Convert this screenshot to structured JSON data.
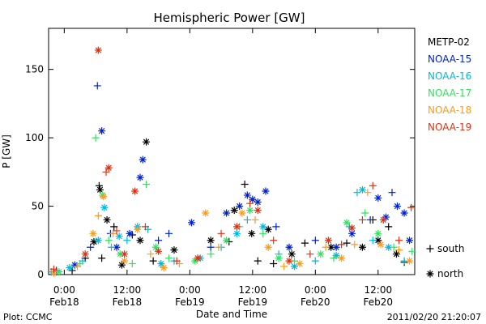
{
  "chart_data": {
    "type": "scatter",
    "title": "Hemispheric Power [GW]",
    "ylabel": "P [GW]",
    "xlabel": "Date and Time",
    "ylim": [
      0,
      180
    ],
    "xlim": [
      "2011-02-17 21:00",
      "2011-02-20 19:00"
    ],
    "y_ticks": [
      0,
      50,
      100,
      150
    ],
    "x_ticks": [
      {
        "x": "2011-02-18 00:00",
        "line1": "0:00",
        "line2": "Feb18"
      },
      {
        "x": "2011-02-18 12:00",
        "line1": "12:00",
        "line2": "Feb18"
      },
      {
        "x": "2011-02-19 00:00",
        "line1": "0:00",
        "line2": "Feb19"
      },
      {
        "x": "2011-02-19 12:00",
        "line1": "12:00",
        "line2": "Feb19"
      },
      {
        "x": "2011-02-20 00:00",
        "line1": "0:00",
        "line2": "Feb20"
      },
      {
        "x": "2011-02-20 12:00",
        "line1": "12:00",
        "line2": "Feb20"
      }
    ],
    "grid": false,
    "legend_position": "right",
    "marker_legend": [
      {
        "symbol": "+",
        "label": "south"
      },
      {
        "symbol": "*",
        "label": "north"
      }
    ],
    "series": [
      {
        "name": "METP-02",
        "color": "#000000",
        "points": [
          {
            "x": "2011-02-18 01:30",
            "y": 3,
            "h": "S"
          },
          {
            "x": "2011-02-18 04:00",
            "y": 12,
            "h": "S"
          },
          {
            "x": "2011-02-18 05:40",
            "y": 24,
            "h": "N"
          },
          {
            "x": "2011-02-18 06:40",
            "y": 65,
            "h": "S"
          },
          {
            "x": "2011-02-18 06:50",
            "y": 62,
            "h": "N"
          },
          {
            "x": "2011-02-18 07:10",
            "y": 12,
            "h": "S"
          },
          {
            "x": "2011-02-18 08:10",
            "y": 40,
            "h": "N"
          },
          {
            "x": "2011-02-18 09:30",
            "y": 35,
            "h": "S"
          },
          {
            "x": "2011-02-18 11:00",
            "y": 7,
            "h": "N"
          },
          {
            "x": "2011-02-18 13:00",
            "y": 29,
            "h": "S"
          },
          {
            "x": "2011-02-18 14:30",
            "y": 25,
            "h": "N"
          },
          {
            "x": "2011-02-18 15:40",
            "y": 97,
            "h": "N"
          },
          {
            "x": "2011-02-18 17:00",
            "y": 10,
            "h": "S"
          },
          {
            "x": "2011-02-18 21:00",
            "y": 18,
            "h": "N"
          },
          {
            "x": "2011-02-19 04:00",
            "y": 25,
            "h": "N"
          },
          {
            "x": "2011-02-19 07:30",
            "y": 24,
            "h": "S"
          },
          {
            "x": "2011-02-19 08:30",
            "y": 47,
            "h": "N"
          },
          {
            "x": "2011-02-19 10:30",
            "y": 66,
            "h": "S"
          },
          {
            "x": "2011-02-19 11:50",
            "y": 30,
            "h": "N"
          },
          {
            "x": "2011-02-19 13:00",
            "y": 10,
            "h": "S"
          },
          {
            "x": "2011-02-19 15:00",
            "y": 33,
            "h": "N"
          },
          {
            "x": "2011-02-19 16:00",
            "y": 8,
            "h": "S"
          },
          {
            "x": "2011-02-19 19:30",
            "y": 15,
            "h": "N"
          },
          {
            "x": "2011-02-19 22:00",
            "y": 23,
            "h": "S"
          },
          {
            "x": "2011-02-20 03:00",
            "y": 20,
            "h": "N"
          },
          {
            "x": "2011-02-20 06:00",
            "y": 23,
            "h": "S"
          },
          {
            "x": "2011-02-20 09:00",
            "y": 20,
            "h": "N"
          },
          {
            "x": "2011-02-20 11:00",
            "y": 40,
            "h": "S"
          },
          {
            "x": "2011-02-20 12:00",
            "y": 25,
            "h": "N"
          },
          {
            "x": "2011-02-20 14:00",
            "y": 35,
            "h": "S"
          },
          {
            "x": "2011-02-20 15:30",
            "y": 15,
            "h": "N"
          },
          {
            "x": "2011-02-20 17:00",
            "y": 9,
            "h": "S"
          }
        ]
      },
      {
        "name": "NOAA-15",
        "color": "#0022cc",
        "points": [
          {
            "x": "2011-02-17 22:30",
            "y": 3,
            "h": "S"
          },
          {
            "x": "2011-02-18 02:00",
            "y": 7,
            "h": "N"
          },
          {
            "x": "2011-02-18 05:00",
            "y": 20,
            "h": "S"
          },
          {
            "x": "2011-02-18 06:20",
            "y": 138,
            "h": "S"
          },
          {
            "x": "2011-02-18 07:10",
            "y": 105,
            "h": "N"
          },
          {
            "x": "2011-02-18 08:50",
            "y": 30,
            "h": "S"
          },
          {
            "x": "2011-02-18 10:00",
            "y": 20,
            "h": "N"
          },
          {
            "x": "2011-02-18 12:30",
            "y": 30,
            "h": "N"
          },
          {
            "x": "2011-02-18 14:30",
            "y": 71,
            "h": "N"
          },
          {
            "x": "2011-02-18 15:00",
            "y": 84,
            "h": "N"
          },
          {
            "x": "2011-02-18 18:00",
            "y": 25,
            "h": "S"
          },
          {
            "x": "2011-02-18 20:00",
            "y": 30,
            "h": "S"
          },
          {
            "x": "2011-02-19 00:20",
            "y": 38,
            "h": "N"
          },
          {
            "x": "2011-02-19 04:00",
            "y": 20,
            "h": "S"
          },
          {
            "x": "2011-02-19 07:00",
            "y": 45,
            "h": "N"
          },
          {
            "x": "2011-02-19 09:30",
            "y": 50,
            "h": "N"
          },
          {
            "x": "2011-02-19 11:00",
            "y": 58,
            "h": "N"
          },
          {
            "x": "2011-02-19 12:00",
            "y": 55,
            "h": "N"
          },
          {
            "x": "2011-02-19 13:00",
            "y": 53,
            "h": "N"
          },
          {
            "x": "2011-02-19 14:30",
            "y": 61,
            "h": "N"
          },
          {
            "x": "2011-02-19 16:30",
            "y": 35,
            "h": "S"
          },
          {
            "x": "2011-02-19 19:00",
            "y": 20,
            "h": "N"
          },
          {
            "x": "2011-02-20 00:00",
            "y": 25,
            "h": "S"
          },
          {
            "x": "2011-02-20 04:00",
            "y": 20,
            "h": "N"
          },
          {
            "x": "2011-02-20 07:00",
            "y": 30,
            "h": "N"
          },
          {
            "x": "2011-02-20 10:30",
            "y": 40,
            "h": "S"
          },
          {
            "x": "2011-02-20 12:00",
            "y": 56,
            "h": "N"
          },
          {
            "x": "2011-02-20 13:30",
            "y": 42,
            "h": "N"
          },
          {
            "x": "2011-02-20 14:40",
            "y": 60,
            "h": "S"
          },
          {
            "x": "2011-02-20 15:40",
            "y": 50,
            "h": "N"
          },
          {
            "x": "2011-02-20 17:00",
            "y": 45,
            "h": "N"
          },
          {
            "x": "2011-02-20 18:00",
            "y": 25,
            "h": "N"
          }
        ]
      },
      {
        "name": "NOAA-16",
        "color": "#00b8e0",
        "points": [
          {
            "x": "2011-02-17 21:30",
            "y": 2,
            "h": "S"
          },
          {
            "x": "2011-02-18 01:00",
            "y": 5,
            "h": "N"
          },
          {
            "x": "2011-02-18 03:30",
            "y": 10,
            "h": "S"
          },
          {
            "x": "2011-02-18 06:30",
            "y": 25,
            "h": "N"
          },
          {
            "x": "2011-02-18 07:40",
            "y": 49,
            "h": "N"
          },
          {
            "x": "2011-02-18 09:00",
            "y": 20,
            "h": "S"
          },
          {
            "x": "2011-02-18 10:30",
            "y": 28,
            "h": "N"
          },
          {
            "x": "2011-02-18 12:00",
            "y": 25,
            "h": "S"
          },
          {
            "x": "2011-02-18 14:00",
            "y": 35,
            "h": "N"
          },
          {
            "x": "2011-02-18 16:00",
            "y": 33,
            "h": "S"
          },
          {
            "x": "2011-02-18 18:30",
            "y": 8,
            "h": "N"
          },
          {
            "x": "2011-02-18 21:00",
            "y": 10,
            "h": "S"
          },
          {
            "x": "2011-02-19 02:00",
            "y": 12,
            "h": "N"
          },
          {
            "x": "2011-02-19 06:00",
            "y": 20,
            "h": "S"
          },
          {
            "x": "2011-02-19 09:00",
            "y": 30,
            "h": "N"
          },
          {
            "x": "2011-02-19 11:00",
            "y": 40,
            "h": "S"
          },
          {
            "x": "2011-02-19 14:00",
            "y": 35,
            "h": "N"
          },
          {
            "x": "2011-02-19 17:00",
            "y": 15,
            "h": "S"
          },
          {
            "x": "2011-02-19 20:00",
            "y": 6,
            "h": "N"
          },
          {
            "x": "2011-02-20 00:00",
            "y": 10,
            "h": "S"
          },
          {
            "x": "2011-02-20 04:00",
            "y": 14,
            "h": "N"
          },
          {
            "x": "2011-02-20 06:30",
            "y": 35,
            "h": "S"
          },
          {
            "x": "2011-02-20 08:00",
            "y": 60,
            "h": "S"
          },
          {
            "x": "2011-02-20 09:00",
            "y": 62,
            "h": "N"
          },
          {
            "x": "2011-02-20 11:00",
            "y": 25,
            "h": "S"
          },
          {
            "x": "2011-02-20 14:00",
            "y": 20,
            "h": "N"
          },
          {
            "x": "2011-02-20 17:00",
            "y": 10,
            "h": "S"
          }
        ]
      },
      {
        "name": "NOAA-17",
        "color": "#33e060",
        "points": [
          {
            "x": "2011-02-17 23:00",
            "y": 2,
            "h": "N"
          },
          {
            "x": "2011-02-18 03:00",
            "y": 8,
            "h": "S"
          },
          {
            "x": "2011-02-18 06:00",
            "y": 100,
            "h": "S"
          },
          {
            "x": "2011-02-18 07:20",
            "y": 58,
            "h": "N"
          },
          {
            "x": "2011-02-18 08:30",
            "y": 25,
            "h": "S"
          },
          {
            "x": "2011-02-18 10:40",
            "y": 15,
            "h": "N"
          },
          {
            "x": "2011-02-18 13:00",
            "y": 8,
            "h": "S"
          },
          {
            "x": "2011-02-18 15:40",
            "y": 66,
            "h": "S"
          },
          {
            "x": "2011-02-18 17:30",
            "y": 20,
            "h": "N"
          },
          {
            "x": "2011-02-18 20:00",
            "y": 12,
            "h": "S"
          },
          {
            "x": "2011-02-19 01:00",
            "y": 10,
            "h": "N"
          },
          {
            "x": "2011-02-19 04:00",
            "y": 15,
            "h": "S"
          },
          {
            "x": "2011-02-19 07:00",
            "y": 25,
            "h": "N"
          },
          {
            "x": "2011-02-19 09:30",
            "y": 35,
            "h": "S"
          },
          {
            "x": "2011-02-19 11:30",
            "y": 47,
            "h": "N"
          },
          {
            "x": "2011-02-19 14:00",
            "y": 30,
            "h": "S"
          },
          {
            "x": "2011-02-19 17:00",
            "y": 12,
            "h": "N"
          },
          {
            "x": "2011-02-19 20:00",
            "y": 10,
            "h": "S"
          },
          {
            "x": "2011-02-20 01:00",
            "y": 15,
            "h": "N"
          },
          {
            "x": "2011-02-20 03:30",
            "y": 12,
            "h": "S"
          },
          {
            "x": "2011-02-20 06:00",
            "y": 38,
            "h": "N"
          },
          {
            "x": "2011-02-20 09:30",
            "y": 45,
            "h": "S"
          },
          {
            "x": "2011-02-20 12:00",
            "y": 30,
            "h": "N"
          },
          {
            "x": "2011-02-20 15:00",
            "y": 20,
            "h": "S"
          },
          {
            "x": "2011-02-20 18:30",
            "y": 17,
            "h": "S"
          }
        ]
      },
      {
        "name": "NOAA-18",
        "color": "#ff9a1a",
        "points": [
          {
            "x": "2011-02-17 22:00",
            "y": 1,
            "h": "N"
          },
          {
            "x": "2011-02-18 02:30",
            "y": 6,
            "h": "S"
          },
          {
            "x": "2011-02-18 05:30",
            "y": 30,
            "h": "N"
          },
          {
            "x": "2011-02-18 06:30",
            "y": 43,
            "h": "S"
          },
          {
            "x": "2011-02-18 07:30",
            "y": 57,
            "h": "N"
          },
          {
            "x": "2011-02-18 09:20",
            "y": 30,
            "h": "S"
          },
          {
            "x": "2011-02-18 11:30",
            "y": 10,
            "h": "N"
          },
          {
            "x": "2011-02-18 14:00",
            "y": 33,
            "h": "N"
          },
          {
            "x": "2011-02-18 16:30",
            "y": 15,
            "h": "S"
          },
          {
            "x": "2011-02-18 19:00",
            "y": 5,
            "h": "N"
          },
          {
            "x": "2011-02-18 22:00",
            "y": 8,
            "h": "S"
          },
          {
            "x": "2011-02-19 03:00",
            "y": 45,
            "h": "N"
          },
          {
            "x": "2011-02-19 05:30",
            "y": 20,
            "h": "S"
          },
          {
            "x": "2011-02-19 10:00",
            "y": 45,
            "h": "N"
          },
          {
            "x": "2011-02-19 12:30",
            "y": 40,
            "h": "S"
          },
          {
            "x": "2011-02-19 15:00",
            "y": 20,
            "h": "N"
          },
          {
            "x": "2011-02-19 18:00",
            "y": 6,
            "h": "S"
          },
          {
            "x": "2011-02-19 21:00",
            "y": 8,
            "h": "N"
          },
          {
            "x": "2011-02-20 02:00",
            "y": 20,
            "h": "S"
          },
          {
            "x": "2011-02-20 05:00",
            "y": 12,
            "h": "N"
          },
          {
            "x": "2011-02-20 07:30",
            "y": 22,
            "h": "S"
          },
          {
            "x": "2011-02-20 10:00",
            "y": 60,
            "h": "S"
          },
          {
            "x": "2011-02-20 12:30",
            "y": 22,
            "h": "N"
          },
          {
            "x": "2011-02-20 16:00",
            "y": 18,
            "h": "S"
          },
          {
            "x": "2011-02-20 18:00",
            "y": 10,
            "h": "N"
          }
        ]
      },
      {
        "name": "NOAA-19",
        "color": "#e03010",
        "points": [
          {
            "x": "2011-02-17 22:00",
            "y": 4,
            "h": "S"
          },
          {
            "x": "2011-02-18 04:00",
            "y": 15,
            "h": "N"
          },
          {
            "x": "2011-02-18 06:30",
            "y": 164,
            "h": "N"
          },
          {
            "x": "2011-02-18 08:00",
            "y": 75,
            "h": "S"
          },
          {
            "x": "2011-02-18 08:30",
            "y": 78,
            "h": "N"
          },
          {
            "x": "2011-02-18 10:00",
            "y": 32,
            "h": "S"
          },
          {
            "x": "2011-02-18 11:30",
            "y": 15,
            "h": "N"
          },
          {
            "x": "2011-02-18 13:30",
            "y": 61,
            "h": "N"
          },
          {
            "x": "2011-02-18 15:30",
            "y": 35,
            "h": "S"
          },
          {
            "x": "2011-02-18 18:00",
            "y": 17,
            "h": "N"
          },
          {
            "x": "2011-02-18 21:30",
            "y": 10,
            "h": "S"
          },
          {
            "x": "2011-02-19 01:30",
            "y": 12,
            "h": "N"
          },
          {
            "x": "2011-02-19 06:00",
            "y": 30,
            "h": "S"
          },
          {
            "x": "2011-02-19 09:00",
            "y": 35,
            "h": "N"
          },
          {
            "x": "2011-02-19 11:30",
            "y": 52,
            "h": "S"
          },
          {
            "x": "2011-02-19 13:00",
            "y": 47,
            "h": "N"
          },
          {
            "x": "2011-02-19 16:00",
            "y": 25,
            "h": "S"
          },
          {
            "x": "2011-02-19 19:00",
            "y": 10,
            "h": "N"
          },
          {
            "x": "2011-02-19 23:00",
            "y": 15,
            "h": "S"
          },
          {
            "x": "2011-02-20 02:30",
            "y": 25,
            "h": "N"
          },
          {
            "x": "2011-02-20 05:00",
            "y": 22,
            "h": "S"
          },
          {
            "x": "2011-02-20 07:00",
            "y": 34,
            "h": "N"
          },
          {
            "x": "2011-02-20 09:00",
            "y": 40,
            "h": "S"
          },
          {
            "x": "2011-02-20 11:00",
            "y": 65,
            "h": "S"
          },
          {
            "x": "2011-02-20 13:00",
            "y": 40,
            "h": "N"
          },
          {
            "x": "2011-02-20 16:00",
            "y": 25,
            "h": "S"
          },
          {
            "x": "2011-02-20 18:20",
            "y": 49,
            "h": "S"
          }
        ]
      }
    ]
  },
  "footer": {
    "plot_label": "Plot: CCMC",
    "timestamp": "2011/02/20 21:20:07"
  }
}
